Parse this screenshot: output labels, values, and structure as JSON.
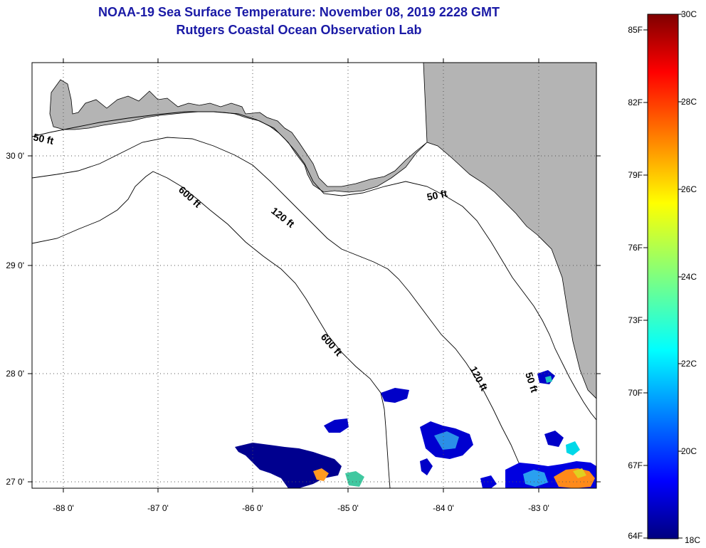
{
  "header": {
    "title": "NOAA-19 Sea Surface Temperature:  November 08, 2019 2228 GMT",
    "subtitle": "Rutgers Coastal Ocean Observation Lab"
  },
  "map": {
    "lon_ticks": [
      "-88 0'",
      "-87 0'",
      "-86 0'",
      "-85 0'",
      "-84 0'",
      "-83 0'"
    ],
    "lat_ticks": [
      "30 0'",
      "29 0'",
      "28 0'",
      "27 0'"
    ],
    "contour_labels": {
      "c50_west": "50 ft",
      "c50_east": "50 ft",
      "c50_south": "50 ft",
      "c120_north": "120 ft",
      "c120_south": "120 ft",
      "c600_north": "600 ft",
      "c600_south": "600 ft"
    },
    "colors": {
      "land": "#b4b4b4",
      "ocean": "#ffffff",
      "gridlines": "#555555",
      "frame": "#000000"
    }
  },
  "colorbar": {
    "f_labels": [
      "85F",
      "82F",
      "79F",
      "76F",
      "73F",
      "70F",
      "67F",
      "64F"
    ],
    "c_labels": [
      "30C",
      "28C",
      "26C",
      "24C",
      "22C",
      "20C",
      "18C"
    ],
    "colormap": "jet",
    "min_c": "18C",
    "max_c": "30C"
  }
}
